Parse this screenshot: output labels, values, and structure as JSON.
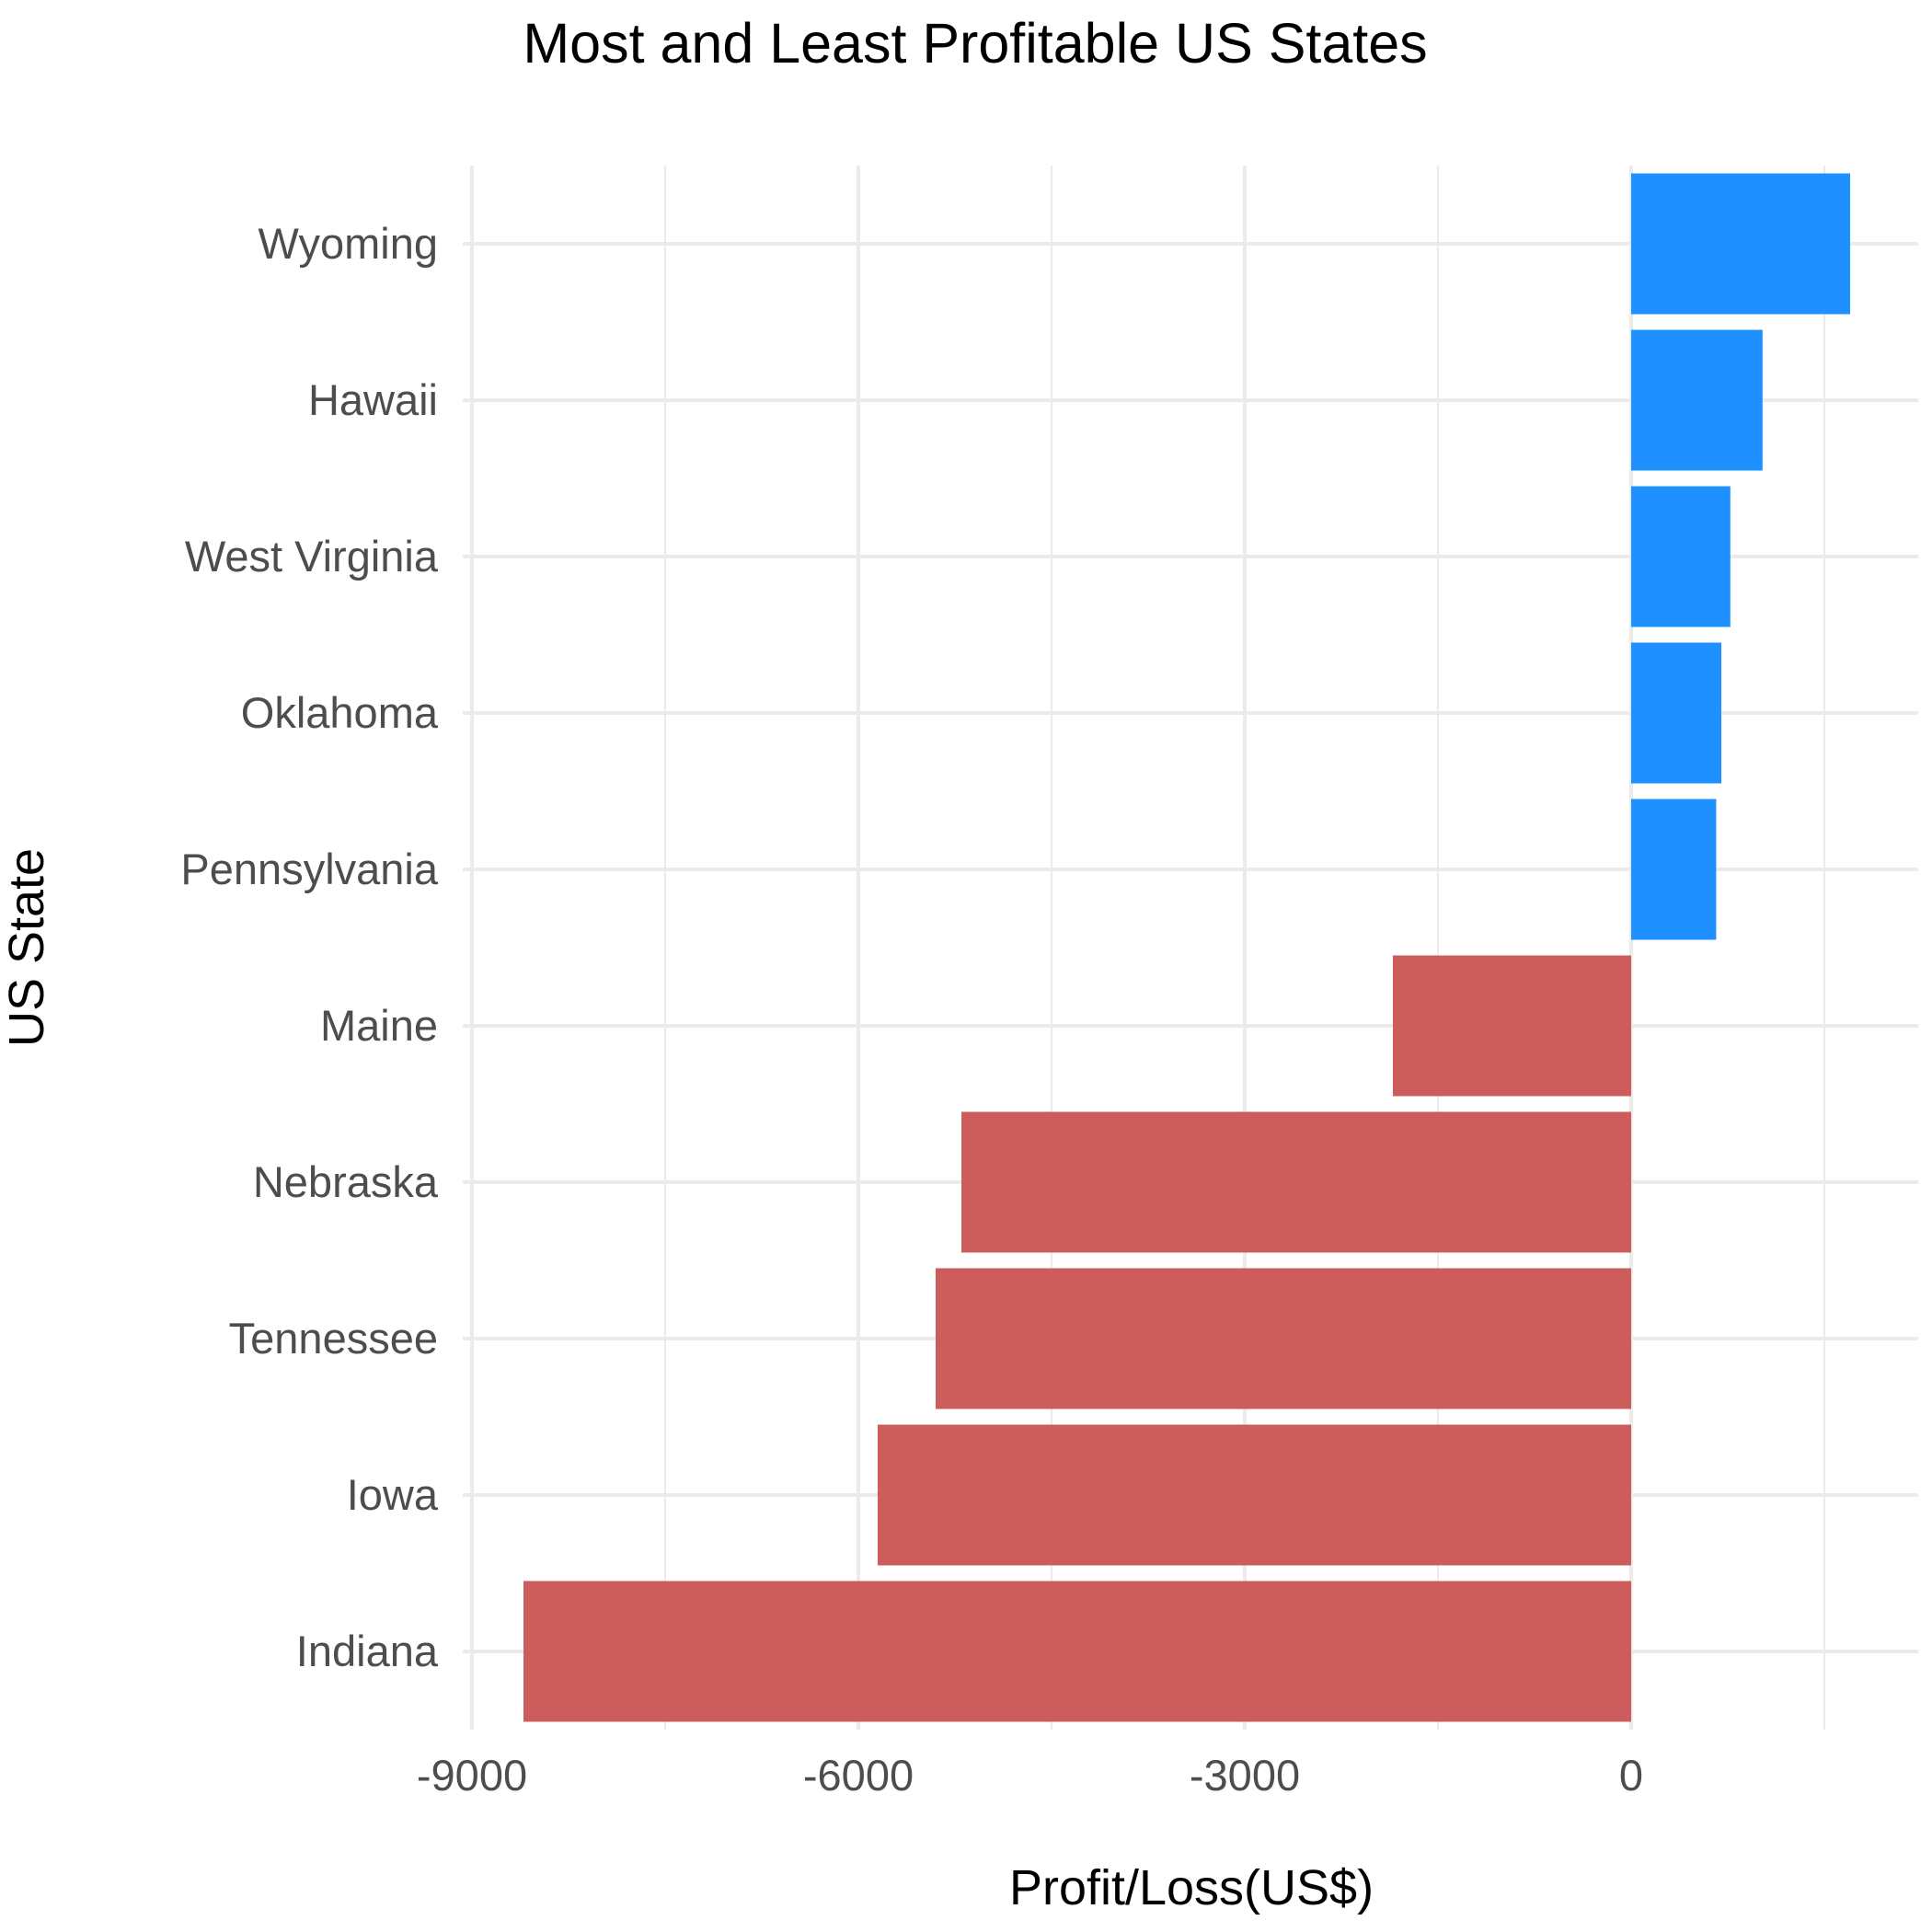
{
  "chart_data": {
    "type": "bar",
    "orientation": "horizontal",
    "title": "Most and Least Profitable US States",
    "xlabel": "Profit/Loss(US$)",
    "ylabel": "US State",
    "categories": [
      "Wyoming",
      "Hawaii",
      "West Virginia",
      "Oklahoma",
      "Pennsylvania",
      "Maine",
      "Nebraska",
      "Tennessee",
      "Iowa",
      "Indiana"
    ],
    "values": [
      1700,
      1020,
      770,
      700,
      660,
      -1850,
      -5200,
      -5400,
      -5850,
      -8600
    ],
    "xlim": [
      -9000,
      1900
    ],
    "xticks": [
      -9000,
      -6000,
      -3000,
      0
    ],
    "xtick_labels": [
      "-9000",
      "-6000",
      "-3000",
      "0"
    ],
    "grid": true,
    "legend": "none",
    "colors": {
      "positive": "#1e90ff",
      "negative": "#cd5c5c"
    }
  }
}
